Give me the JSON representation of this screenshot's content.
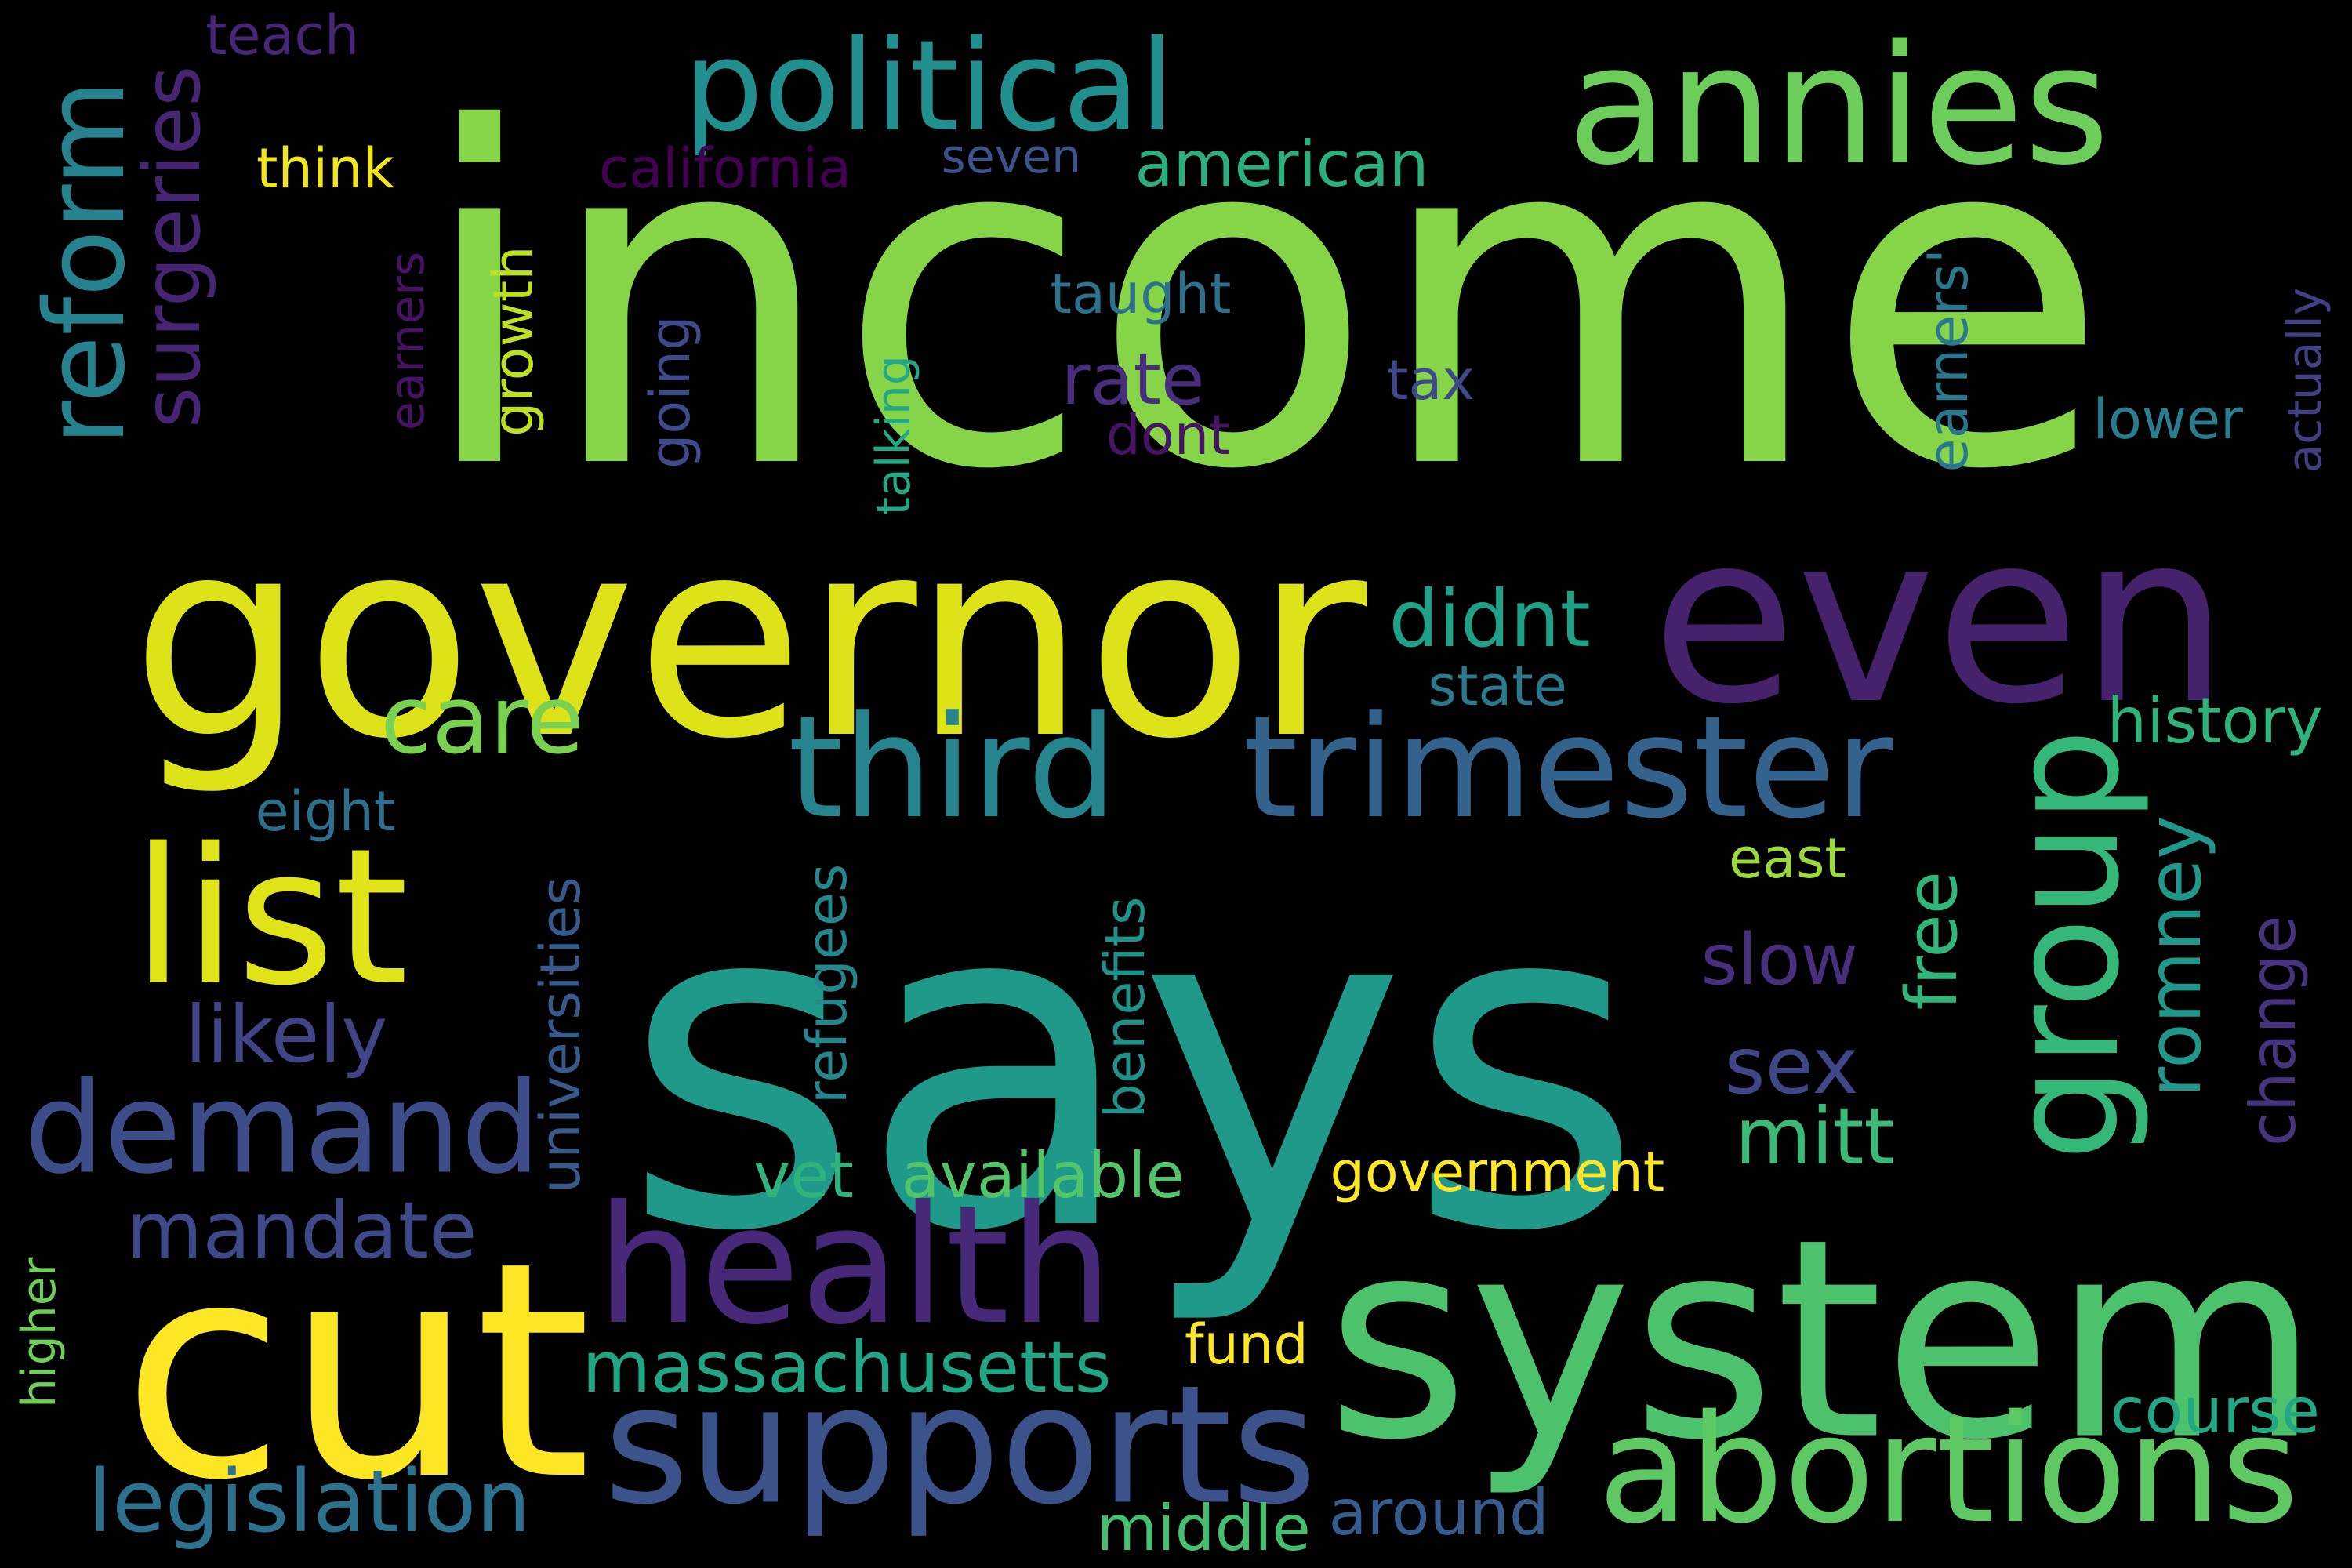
{
  "background_color": "#000000",
  "words": [
    {
      "text": "income",
      "color": "#86d549"
    },
    {
      "text": "says",
      "color": "#1f9a8a"
    },
    {
      "text": "governor",
      "color": "#dde318"
    },
    {
      "text": "even",
      "color": "#46226d"
    },
    {
      "text": "system",
      "color": "#4cc26c"
    },
    {
      "text": "cut",
      "color": "#fde725"
    },
    {
      "text": "political",
      "color": "#218f8d"
    },
    {
      "text": "annies",
      "color": "#6ccd5a"
    },
    {
      "text": "third",
      "color": "#25848e"
    },
    {
      "text": "trimester",
      "color": "#33628d"
    },
    {
      "text": "list",
      "color": "#dfe318"
    },
    {
      "text": "health",
      "color": "#482878"
    },
    {
      "text": "abortions",
      "color": "#5ec962"
    },
    {
      "text": "supports",
      "color": "#3b528b"
    },
    {
      "text": "demand",
      "color": "#3d4d8a"
    },
    {
      "text": "care",
      "color": "#7ad151"
    },
    {
      "text": "group",
      "color": "#35b779"
    },
    {
      "text": "reform",
      "color": "#26828e"
    },
    {
      "text": "surgeries",
      "color": "#482475"
    },
    {
      "text": "massachusetts",
      "color": "#21a685"
    },
    {
      "text": "legislation",
      "color": "#2c728e"
    },
    {
      "text": "mandate",
      "color": "#3e4989"
    },
    {
      "text": "likely",
      "color": "#414487"
    },
    {
      "text": "mitt",
      "color": "#3aba76"
    },
    {
      "text": "government",
      "color": "#fde725"
    },
    {
      "text": "change",
      "color": "#46337e"
    },
    {
      "text": "romney",
      "color": "#1f978b"
    },
    {
      "text": "free",
      "color": "#31b57b"
    },
    {
      "text": "sex",
      "color": "#3f4788"
    },
    {
      "text": "slow",
      "color": "#472f7d"
    },
    {
      "text": "available",
      "color": "#52c569"
    },
    {
      "text": "universities",
      "color": "#38598c"
    },
    {
      "text": "refugees",
      "color": "#24878e"
    },
    {
      "text": "benefits",
      "color": "#20928c"
    },
    {
      "text": "didnt",
      "color": "#1fa088"
    },
    {
      "text": "rate",
      "color": "#472f7d"
    },
    {
      "text": "american",
      "color": "#2ab07f"
    },
    {
      "text": "california",
      "color": "#440154"
    },
    {
      "text": "growth",
      "color": "#bddf26"
    },
    {
      "text": "talking",
      "color": "#22a884"
    },
    {
      "text": "going",
      "color": "#3e4a89"
    },
    {
      "text": "earners",
      "color": "#471164"
    },
    {
      "text": "earners'",
      "color": "#29798e"
    },
    {
      "text": "actually",
      "color": "#423f85"
    },
    {
      "text": "taught",
      "color": "#2c728e"
    },
    {
      "text": "history",
      "color": "#2eb37c"
    },
    {
      "text": "lower",
      "color": "#287d8e"
    },
    {
      "text": "dont",
      "color": "#471365"
    },
    {
      "text": "tax",
      "color": "#3f4889"
    },
    {
      "text": "state",
      "color": "#297a8e"
    },
    {
      "text": "east",
      "color": "#9bd93c"
    },
    {
      "text": "fund",
      "color": "#fde725"
    },
    {
      "text": "course",
      "color": "#22a785"
    },
    {
      "text": "around",
      "color": "#365c8d"
    },
    {
      "text": "middle",
      "color": "#44bf70"
    },
    {
      "text": "higher",
      "color": "#6ece58"
    },
    {
      "text": "vet",
      "color": "#2fb47c"
    },
    {
      "text": "eight",
      "color": "#2d708e"
    },
    {
      "text": "seven",
      "color": "#3b528b"
    },
    {
      "text": "think",
      "color": "#f1e51d"
    },
    {
      "text": "teach",
      "color": "#482677"
    }
  ]
}
